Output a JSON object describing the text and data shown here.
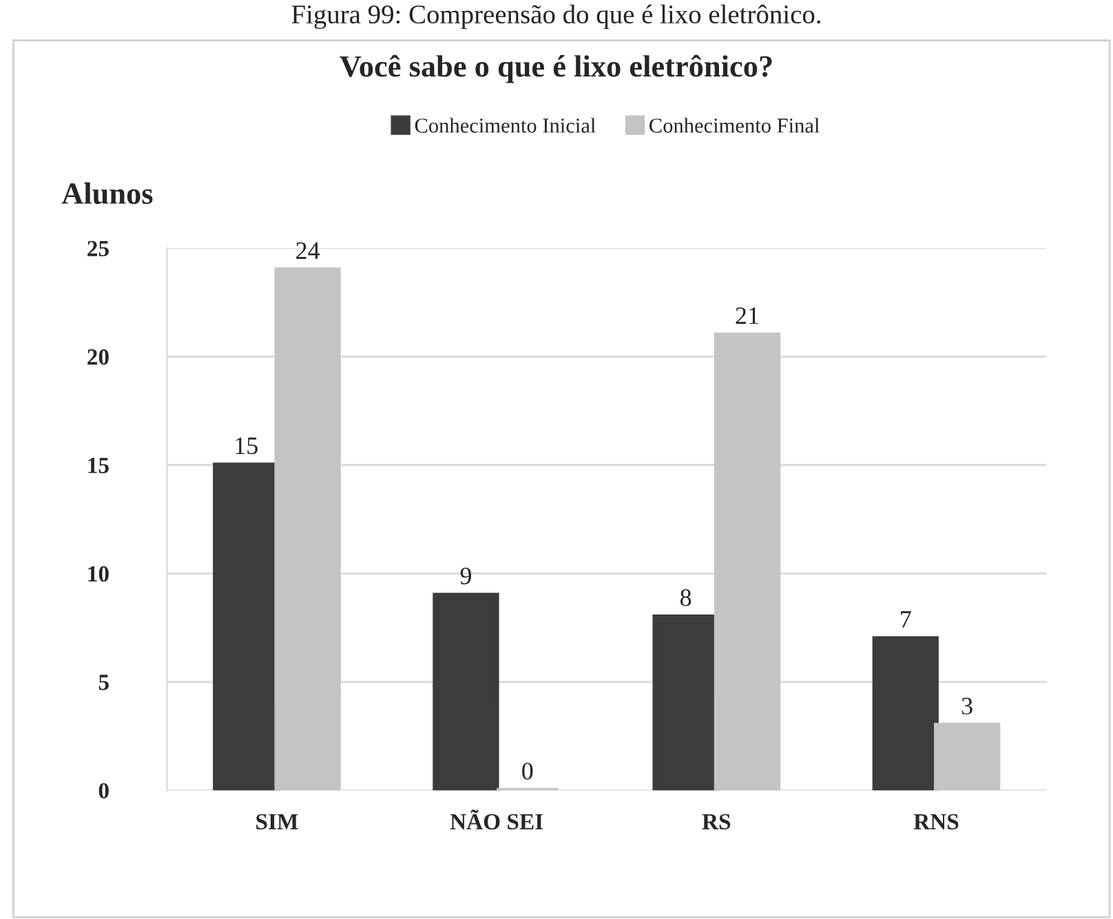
{
  "chart_data": {
    "type": "bar",
    "title": "Você sabe o que é lixo eletrônico?",
    "ylabel": "Alunos",
    "annotations": [
      "Figura 99: Compreensão do que é lixo eletrônico."
    ],
    "categories": [
      "SIM",
      "NÃO SEI",
      "RS",
      "RNS"
    ],
    "series": [
      {
        "name": "Conhecimento Inicial",
        "color": "#3c3c3c",
        "values": [
          15,
          9,
          8,
          7
        ]
      },
      {
        "name": "Conhecimento Final",
        "color": "#c4c4c4",
        "values": [
          24,
          0,
          21,
          3
        ]
      }
    ],
    "ylim": [
      0,
      25
    ],
    "yticks": [
      0,
      5,
      10,
      15,
      20,
      25
    ],
    "grid": "y",
    "legend": "top",
    "data_labels": true
  }
}
